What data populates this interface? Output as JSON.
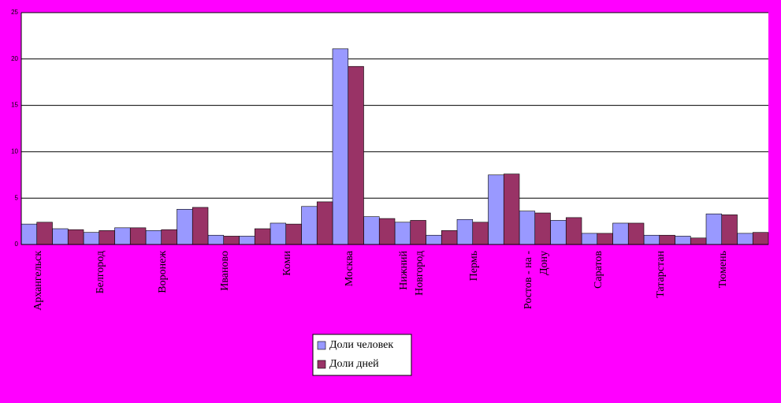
{
  "chart_data": {
    "type": "bar",
    "categories": [
      "Архангельск",
      null,
      "Белгород",
      null,
      "Воронеж",
      null,
      "Иваново",
      null,
      "Коми",
      null,
      "Москва",
      null,
      "Нижний\nНовгород",
      null,
      "Пермь",
      null,
      "Ростов - на -\nДону",
      null,
      "Саратов",
      null,
      "Татарстан",
      null,
      "Тюмень",
      null
    ],
    "series": [
      {
        "name": "Доли человек",
        "color": "#9999ff",
        "values": [
          2.2,
          1.7,
          1.3,
          1.8,
          1.5,
          3.8,
          1.0,
          0.9,
          2.3,
          4.1,
          21.1,
          3.0,
          2.4,
          1.0,
          2.7,
          7.5,
          3.6,
          2.6,
          1.2,
          2.3,
          1.0,
          0.9,
          3.3,
          1.2
        ]
      },
      {
        "name": "Доли дней",
        "color": "#993366",
        "values": [
          2.4,
          1.6,
          1.5,
          1.8,
          1.6,
          4.0,
          0.9,
          1.7,
          2.2,
          4.6,
          19.2,
          2.8,
          2.6,
          1.5,
          2.4,
          7.6,
          3.4,
          2.9,
          1.2,
          2.3,
          1.0,
          0.7,
          3.2,
          1.3
        ]
      }
    ],
    "ylim": [
      0,
      25
    ],
    "yticks": [
      0,
      5,
      10,
      15,
      20,
      25
    ],
    "grid": true
  }
}
